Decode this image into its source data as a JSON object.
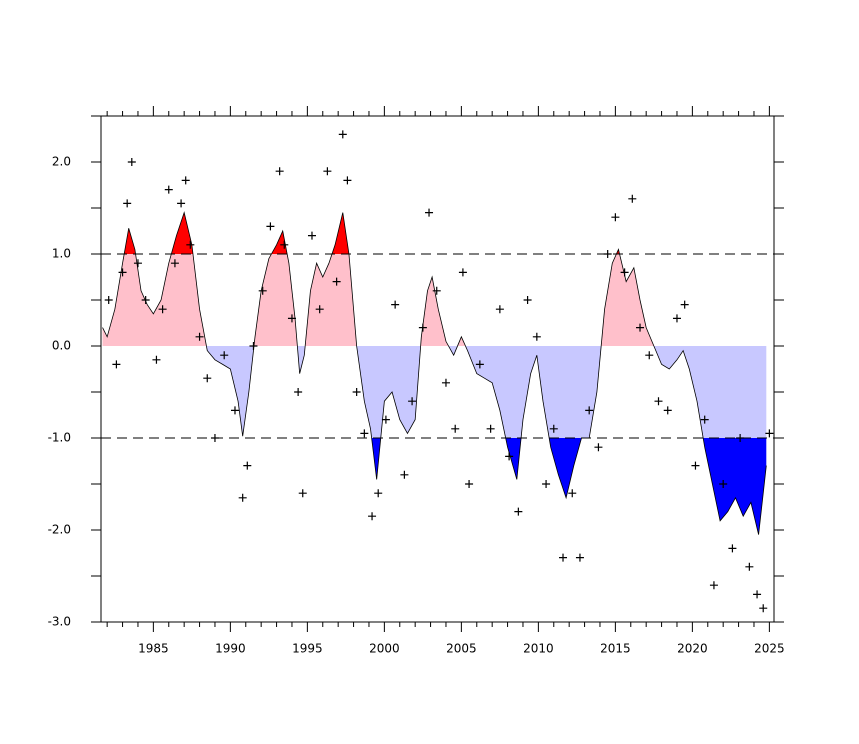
{
  "chart_data": {
    "type": "line",
    "xlim": [
      1981.6,
      2025.3
    ],
    "ylim": [
      -3.0,
      2.5
    ],
    "xticks": [
      1985,
      1990,
      1995,
      2000,
      2005,
      2010,
      2015,
      2020,
      2025
    ],
    "xminorticks": [
      1982,
      1983,
      1984,
      1986,
      1987,
      1988,
      1989,
      1991,
      1992,
      1993,
      1994,
      1996,
      1997,
      1998,
      1999,
      2001,
      2002,
      2003,
      2004,
      2006,
      2007,
      2008,
      2009,
      2011,
      2012,
      2013,
      2014,
      2016,
      2017,
      2018,
      2019,
      2021,
      2022,
      2023,
      2024
    ],
    "yticks": [
      {
        "value": 2.0,
        "label": "2.0"
      },
      {
        "value": 1.0,
        "label": "1.0"
      },
      {
        "value": 0.0,
        "label": "0.0"
      },
      {
        "value": -1.0,
        "label": "-1.0"
      },
      {
        "value": -2.0,
        "label": "-2.0"
      },
      {
        "value": -3.0,
        "label": "-3.0"
      }
    ],
    "yminorticks": [
      2.5,
      1.5,
      0.5,
      -0.5,
      -1.5,
      -2.5
    ],
    "hlines": [
      1.0,
      -1.0
    ],
    "fill_colors": {
      "strong_positive": "#ff0000",
      "positive": "#ffc0cb",
      "negative": "#c8c8ff",
      "strong_negative": "#0000ff"
    },
    "line": {
      "color": "#000000",
      "x": [
        1981.7,
        1982.0,
        1982.5,
        1983.0,
        1983.4,
        1983.8,
        1984.2,
        1984.6,
        1985.0,
        1985.5,
        1986.0,
        1986.5,
        1987.0,
        1987.5,
        1988.0,
        1988.5,
        1989.0,
        1989.5,
        1990.0,
        1990.5,
        1990.8,
        1991.2,
        1991.6,
        1992.0,
        1992.5,
        1993.0,
        1993.4,
        1993.8,
        1994.2,
        1994.5,
        1994.8,
        1995.2,
        1995.6,
        1996.0,
        1996.4,
        1996.8,
        1997.3,
        1997.7,
        1998.2,
        1998.7,
        1999.1,
        1999.5,
        2000.0,
        2000.5,
        2001.0,
        2001.5,
        2002.0,
        2002.4,
        2002.8,
        2003.1,
        2003.5,
        2004.0,
        2004.5,
        2005.0,
        2005.4,
        2006.0,
        2006.5,
        2007.0,
        2007.5,
        2008.0,
        2008.6,
        2009.0,
        2009.5,
        2009.9,
        2010.3,
        2010.8,
        2011.3,
        2011.8,
        2012.3,
        2012.8,
        2013.3,
        2013.8,
        2014.3,
        2014.8,
        2015.2,
        2015.7,
        2016.2,
        2016.6,
        2017.0,
        2017.5,
        2018.0,
        2018.5,
        2019.0,
        2019.4,
        2019.8,
        2020.3,
        2020.8,
        2021.3,
        2021.8,
        2022.3,
        2022.8,
        2023.3,
        2023.8,
        2024.3,
        2024.8
      ],
      "values": [
        0.2,
        0.1,
        0.4,
        0.9,
        1.28,
        1.05,
        0.6,
        0.45,
        0.35,
        0.5,
        0.9,
        1.2,
        1.45,
        1.1,
        0.4,
        -0.05,
        -0.15,
        -0.2,
        -0.25,
        -0.6,
        -0.98,
        -0.5,
        0.1,
        0.6,
        0.95,
        1.1,
        1.25,
        0.9,
        0.3,
        -0.3,
        -0.1,
        0.6,
        0.9,
        0.75,
        0.9,
        1.1,
        1.45,
        1.0,
        0.0,
        -0.6,
        -0.9,
        -1.45,
        -0.6,
        -0.5,
        -0.8,
        -0.95,
        -0.8,
        0.1,
        0.6,
        0.75,
        0.4,
        0.05,
        -0.1,
        0.1,
        -0.05,
        -0.3,
        -0.35,
        -0.4,
        -0.7,
        -1.1,
        -1.45,
        -0.8,
        -0.3,
        -0.1,
        -0.6,
        -1.1,
        -1.4,
        -1.65,
        -1.3,
        -1.0,
        -1.0,
        -0.5,
        0.4,
        0.9,
        1.05,
        0.7,
        0.85,
        0.5,
        0.2,
        0.0,
        -0.2,
        -0.25,
        -0.15,
        -0.05,
        -0.25,
        -0.6,
        -1.1,
        -1.5,
        -1.9,
        -1.8,
        -1.65,
        -1.85,
        -1.7,
        -2.05,
        -1.3
      ]
    },
    "points": {
      "color": "#000000",
      "x": [
        1982.1,
        1982.6,
        1983.0,
        1983.3,
        1983.6,
        1984.0,
        1984.5,
        1985.2,
        1985.6,
        1986.0,
        1986.4,
        1986.8,
        1987.1,
        1987.4,
        1988.0,
        1988.5,
        1989.0,
        1989.6,
        1990.3,
        1990.8,
        1991.1,
        1991.5,
        1992.1,
        1992.6,
        1993.2,
        1993.5,
        1994.0,
        1994.4,
        1994.7,
        1995.3,
        1995.8,
        1996.3,
        1996.9,
        1997.3,
        1997.6,
        1998.2,
        1998.7,
        1999.2,
        1999.6,
        2000.1,
        2000.7,
        2001.3,
        2001.8,
        2002.5,
        2002.9,
        2003.4,
        2004.0,
        2004.6,
        2005.1,
        2005.5,
        2006.2,
        2006.9,
        2007.5,
        2008.1,
        2008.7,
        2009.3,
        2009.9,
        2010.5,
        2011.0,
        2011.6,
        2012.2,
        2012.7,
        2013.3,
        2013.9,
        2014.5,
        2015.0,
        2015.6,
        2016.1,
        2016.6,
        2017.2,
        2017.8,
        2018.4,
        2019.0,
        2019.5,
        2020.2,
        2020.8,
        2021.4,
        2022.0,
        2022.6,
        2023.1,
        2023.7,
        2024.2,
        2024.6,
        2025.0
      ],
      "values": [
        0.5,
        -0.2,
        0.8,
        1.55,
        2.0,
        0.9,
        0.5,
        -0.15,
        0.4,
        1.7,
        0.9,
        1.55,
        1.8,
        1.1,
        0.1,
        -0.35,
        -1.0,
        -0.1,
        -0.7,
        -1.65,
        -1.3,
        0.0,
        0.6,
        1.3,
        1.9,
        1.1,
        0.3,
        -0.5,
        -1.6,
        1.2,
        0.4,
        1.9,
        0.7,
        2.3,
        1.8,
        -0.5,
        -0.95,
        -1.85,
        -1.6,
        -0.8,
        0.45,
        -1.4,
        -0.6,
        0.2,
        1.45,
        0.6,
        -0.4,
        -0.9,
        0.8,
        -1.5,
        -0.2,
        -0.9,
        0.4,
        -1.2,
        -1.8,
        0.5,
        0.1,
        -1.5,
        -0.9,
        -2.3,
        -1.6,
        -2.3,
        -0.7,
        -1.1,
        1.0,
        1.4,
        0.8,
        1.6,
        0.2,
        -0.1,
        -0.6,
        -0.7,
        0.3,
        0.45,
        -1.3,
        -0.8,
        -2.6,
        -1.5,
        -2.2,
        -1.0,
        -2.4,
        -2.7,
        -2.85,
        -0.95
      ]
    }
  }
}
